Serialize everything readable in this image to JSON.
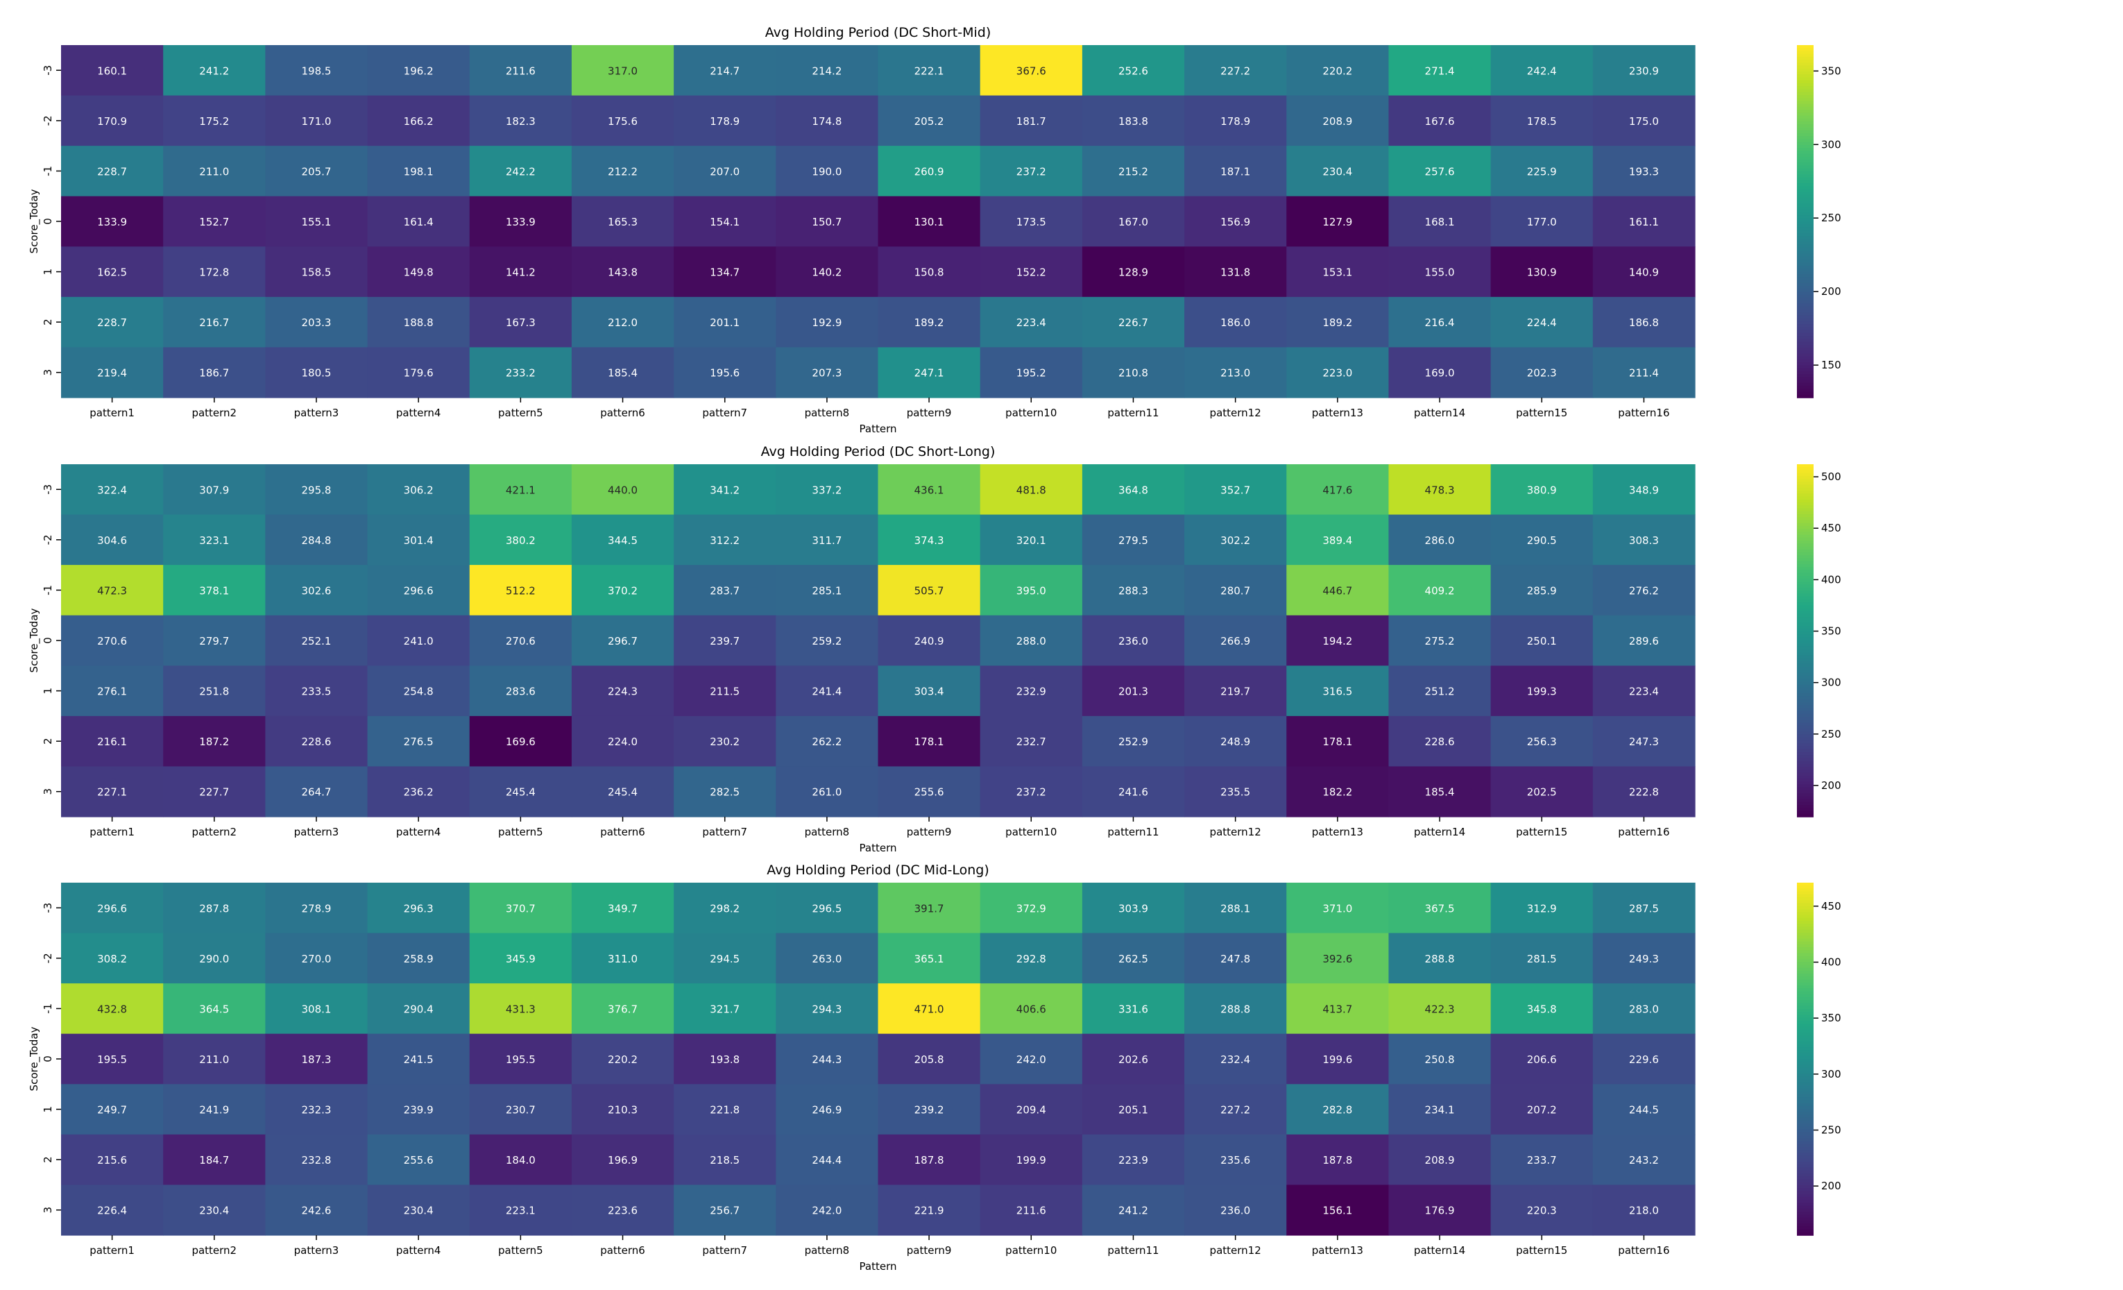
{
  "chart_data": [
    {
      "type": "heatmap",
      "title": "Avg Holding Period (DC Short-Mid)",
      "xlabel": "Pattern",
      "ylabel": "Score_Today",
      "x": [
        "pattern1",
        "pattern2",
        "pattern3",
        "pattern4",
        "pattern5",
        "pattern6",
        "pattern7",
        "pattern8",
        "pattern9",
        "pattern10",
        "pattern11",
        "pattern12",
        "pattern13",
        "pattern14",
        "pattern15",
        "pattern16"
      ],
      "y": [
        "-3",
        "-2",
        "-1",
        "0",
        "1",
        "2",
        "3"
      ],
      "colormap": "viridis",
      "colorbar_range": [
        127.9,
        367.6
      ],
      "colorbar_ticks": [
        150,
        200,
        250,
        300,
        350
      ],
      "values": [
        [
          160.1,
          241.2,
          198.5,
          196.2,
          211.6,
          317.0,
          214.7,
          214.2,
          222.1,
          367.6,
          252.6,
          227.2,
          220.2,
          271.4,
          242.4,
          230.9
        ],
        [
          170.9,
          175.2,
          171.0,
          166.2,
          182.3,
          175.6,
          178.9,
          174.8,
          205.2,
          181.7,
          183.8,
          178.9,
          208.9,
          167.6,
          178.5,
          175.0
        ],
        [
          228.7,
          211.0,
          205.7,
          198.1,
          242.2,
          212.2,
          207.0,
          190.0,
          260.9,
          237.2,
          215.2,
          187.1,
          230.4,
          257.6,
          225.9,
          193.3
        ],
        [
          133.9,
          152.7,
          155.1,
          161.4,
          133.9,
          165.3,
          154.1,
          150.7,
          130.1,
          173.5,
          167.0,
          156.9,
          127.9,
          168.1,
          177.0,
          161.1
        ],
        [
          162.5,
          172.8,
          158.5,
          149.8,
          141.2,
          143.8,
          134.7,
          140.2,
          150.8,
          152.2,
          128.9,
          131.8,
          153.1,
          155.0,
          130.9,
          140.9
        ],
        [
          228.7,
          216.7,
          203.3,
          188.8,
          167.3,
          212.0,
          201.1,
          192.9,
          189.2,
          223.4,
          226.7,
          186.0,
          189.2,
          216.4,
          224.4,
          186.8
        ],
        [
          219.4,
          186.7,
          180.5,
          179.6,
          233.2,
          185.4,
          195.6,
          207.3,
          247.1,
          195.2,
          210.8,
          213.0,
          223.0,
          169.0,
          202.3,
          211.4
        ]
      ]
    },
    {
      "type": "heatmap",
      "title": "Avg Holding Period (DC Short-Long)",
      "xlabel": "Pattern",
      "ylabel": "Score_Today",
      "x": [
        "pattern1",
        "pattern2",
        "pattern3",
        "pattern4",
        "pattern5",
        "pattern6",
        "pattern7",
        "pattern8",
        "pattern9",
        "pattern10",
        "pattern11",
        "pattern12",
        "pattern13",
        "pattern14",
        "pattern15",
        "pattern16"
      ],
      "y": [
        "-3",
        "-2",
        "-1",
        "0",
        "1",
        "2",
        "3"
      ],
      "colormap": "viridis",
      "colorbar_range": [
        169.6,
        512.2
      ],
      "colorbar_ticks": [
        200,
        250,
        300,
        350,
        400,
        450,
        500
      ],
      "values": [
        [
          322.4,
          307.9,
          295.8,
          306.2,
          421.1,
          440.0,
          341.2,
          337.2,
          436.1,
          481.8,
          364.8,
          352.7,
          417.6,
          478.3,
          380.9,
          348.9
        ],
        [
          304.6,
          323.1,
          284.8,
          301.4,
          380.2,
          344.5,
          312.2,
          311.7,
          374.3,
          320.1,
          279.5,
          302.2,
          389.4,
          286.0,
          290.5,
          308.3
        ],
        [
          472.3,
          378.1,
          302.6,
          296.6,
          512.2,
          370.2,
          283.7,
          285.1,
          505.7,
          395.0,
          288.3,
          280.7,
          446.7,
          409.2,
          285.9,
          276.2
        ],
        [
          270.6,
          279.7,
          252.1,
          241.0,
          270.6,
          296.7,
          239.7,
          259.2,
          240.9,
          288.0,
          236.0,
          266.9,
          194.2,
          275.2,
          250.1,
          289.6
        ],
        [
          276.1,
          251.8,
          233.5,
          254.8,
          283.6,
          224.3,
          211.5,
          241.4,
          303.4,
          232.9,
          201.3,
          219.7,
          316.5,
          251.2,
          199.3,
          223.4
        ],
        [
          216.1,
          187.2,
          228.6,
          276.5,
          169.6,
          224.0,
          230.2,
          262.2,
          178.1,
          232.7,
          252.9,
          248.9,
          178.1,
          228.6,
          256.3,
          247.3
        ],
        [
          227.1,
          227.7,
          264.7,
          236.2,
          245.4,
          245.4,
          282.5,
          261.0,
          255.6,
          237.2,
          241.6,
          235.5,
          182.2,
          185.4,
          202.5,
          222.8
        ]
      ]
    },
    {
      "type": "heatmap",
      "title": "Avg Holding Period (DC Mid-Long)",
      "xlabel": "Pattern",
      "ylabel": "Score_Today",
      "x": [
        "pattern1",
        "pattern2",
        "pattern3",
        "pattern4",
        "pattern5",
        "pattern6",
        "pattern7",
        "pattern8",
        "pattern9",
        "pattern10",
        "pattern11",
        "pattern12",
        "pattern13",
        "pattern14",
        "pattern15",
        "pattern16"
      ],
      "y": [
        "-3",
        "-2",
        "-1",
        "0",
        "1",
        "2",
        "3"
      ],
      "colormap": "viridis",
      "colorbar_range": [
        156.1,
        471.0
      ],
      "colorbar_ticks": [
        200,
        250,
        300,
        350,
        400,
        450
      ],
      "values": [
        [
          296.6,
          287.8,
          278.9,
          296.3,
          370.7,
          349.7,
          298.2,
          296.5,
          391.7,
          372.9,
          303.9,
          288.1,
          371.0,
          367.5,
          312.9,
          287.5
        ],
        [
          308.2,
          290.0,
          270.0,
          258.9,
          345.9,
          311.0,
          294.5,
          263.0,
          365.1,
          292.8,
          262.5,
          247.8,
          392.6,
          288.8,
          281.5,
          249.3
        ],
        [
          432.8,
          364.5,
          308.1,
          290.4,
          431.3,
          376.7,
          321.7,
          294.3,
          471.0,
          406.6,
          331.6,
          288.8,
          413.7,
          422.3,
          345.8,
          283.0
        ],
        [
          195.5,
          211.0,
          187.3,
          241.5,
          195.5,
          220.2,
          193.8,
          244.3,
          205.8,
          242.0,
          202.6,
          232.4,
          199.6,
          250.8,
          206.6,
          229.6
        ],
        [
          249.7,
          241.9,
          232.3,
          239.9,
          230.7,
          210.3,
          221.8,
          246.9,
          239.2,
          209.4,
          205.1,
          227.2,
          282.8,
          234.1,
          207.2,
          244.5
        ],
        [
          215.6,
          184.7,
          232.8,
          255.6,
          184.0,
          196.9,
          218.5,
          244.4,
          187.8,
          199.9,
          223.9,
          235.6,
          187.8,
          208.9,
          233.7,
          243.2
        ],
        [
          226.4,
          230.4,
          242.6,
          230.4,
          223.1,
          223.6,
          256.7,
          242.0,
          221.9,
          211.6,
          241.2,
          236.0,
          156.1,
          176.9,
          220.3,
          218.0
        ]
      ]
    }
  ]
}
